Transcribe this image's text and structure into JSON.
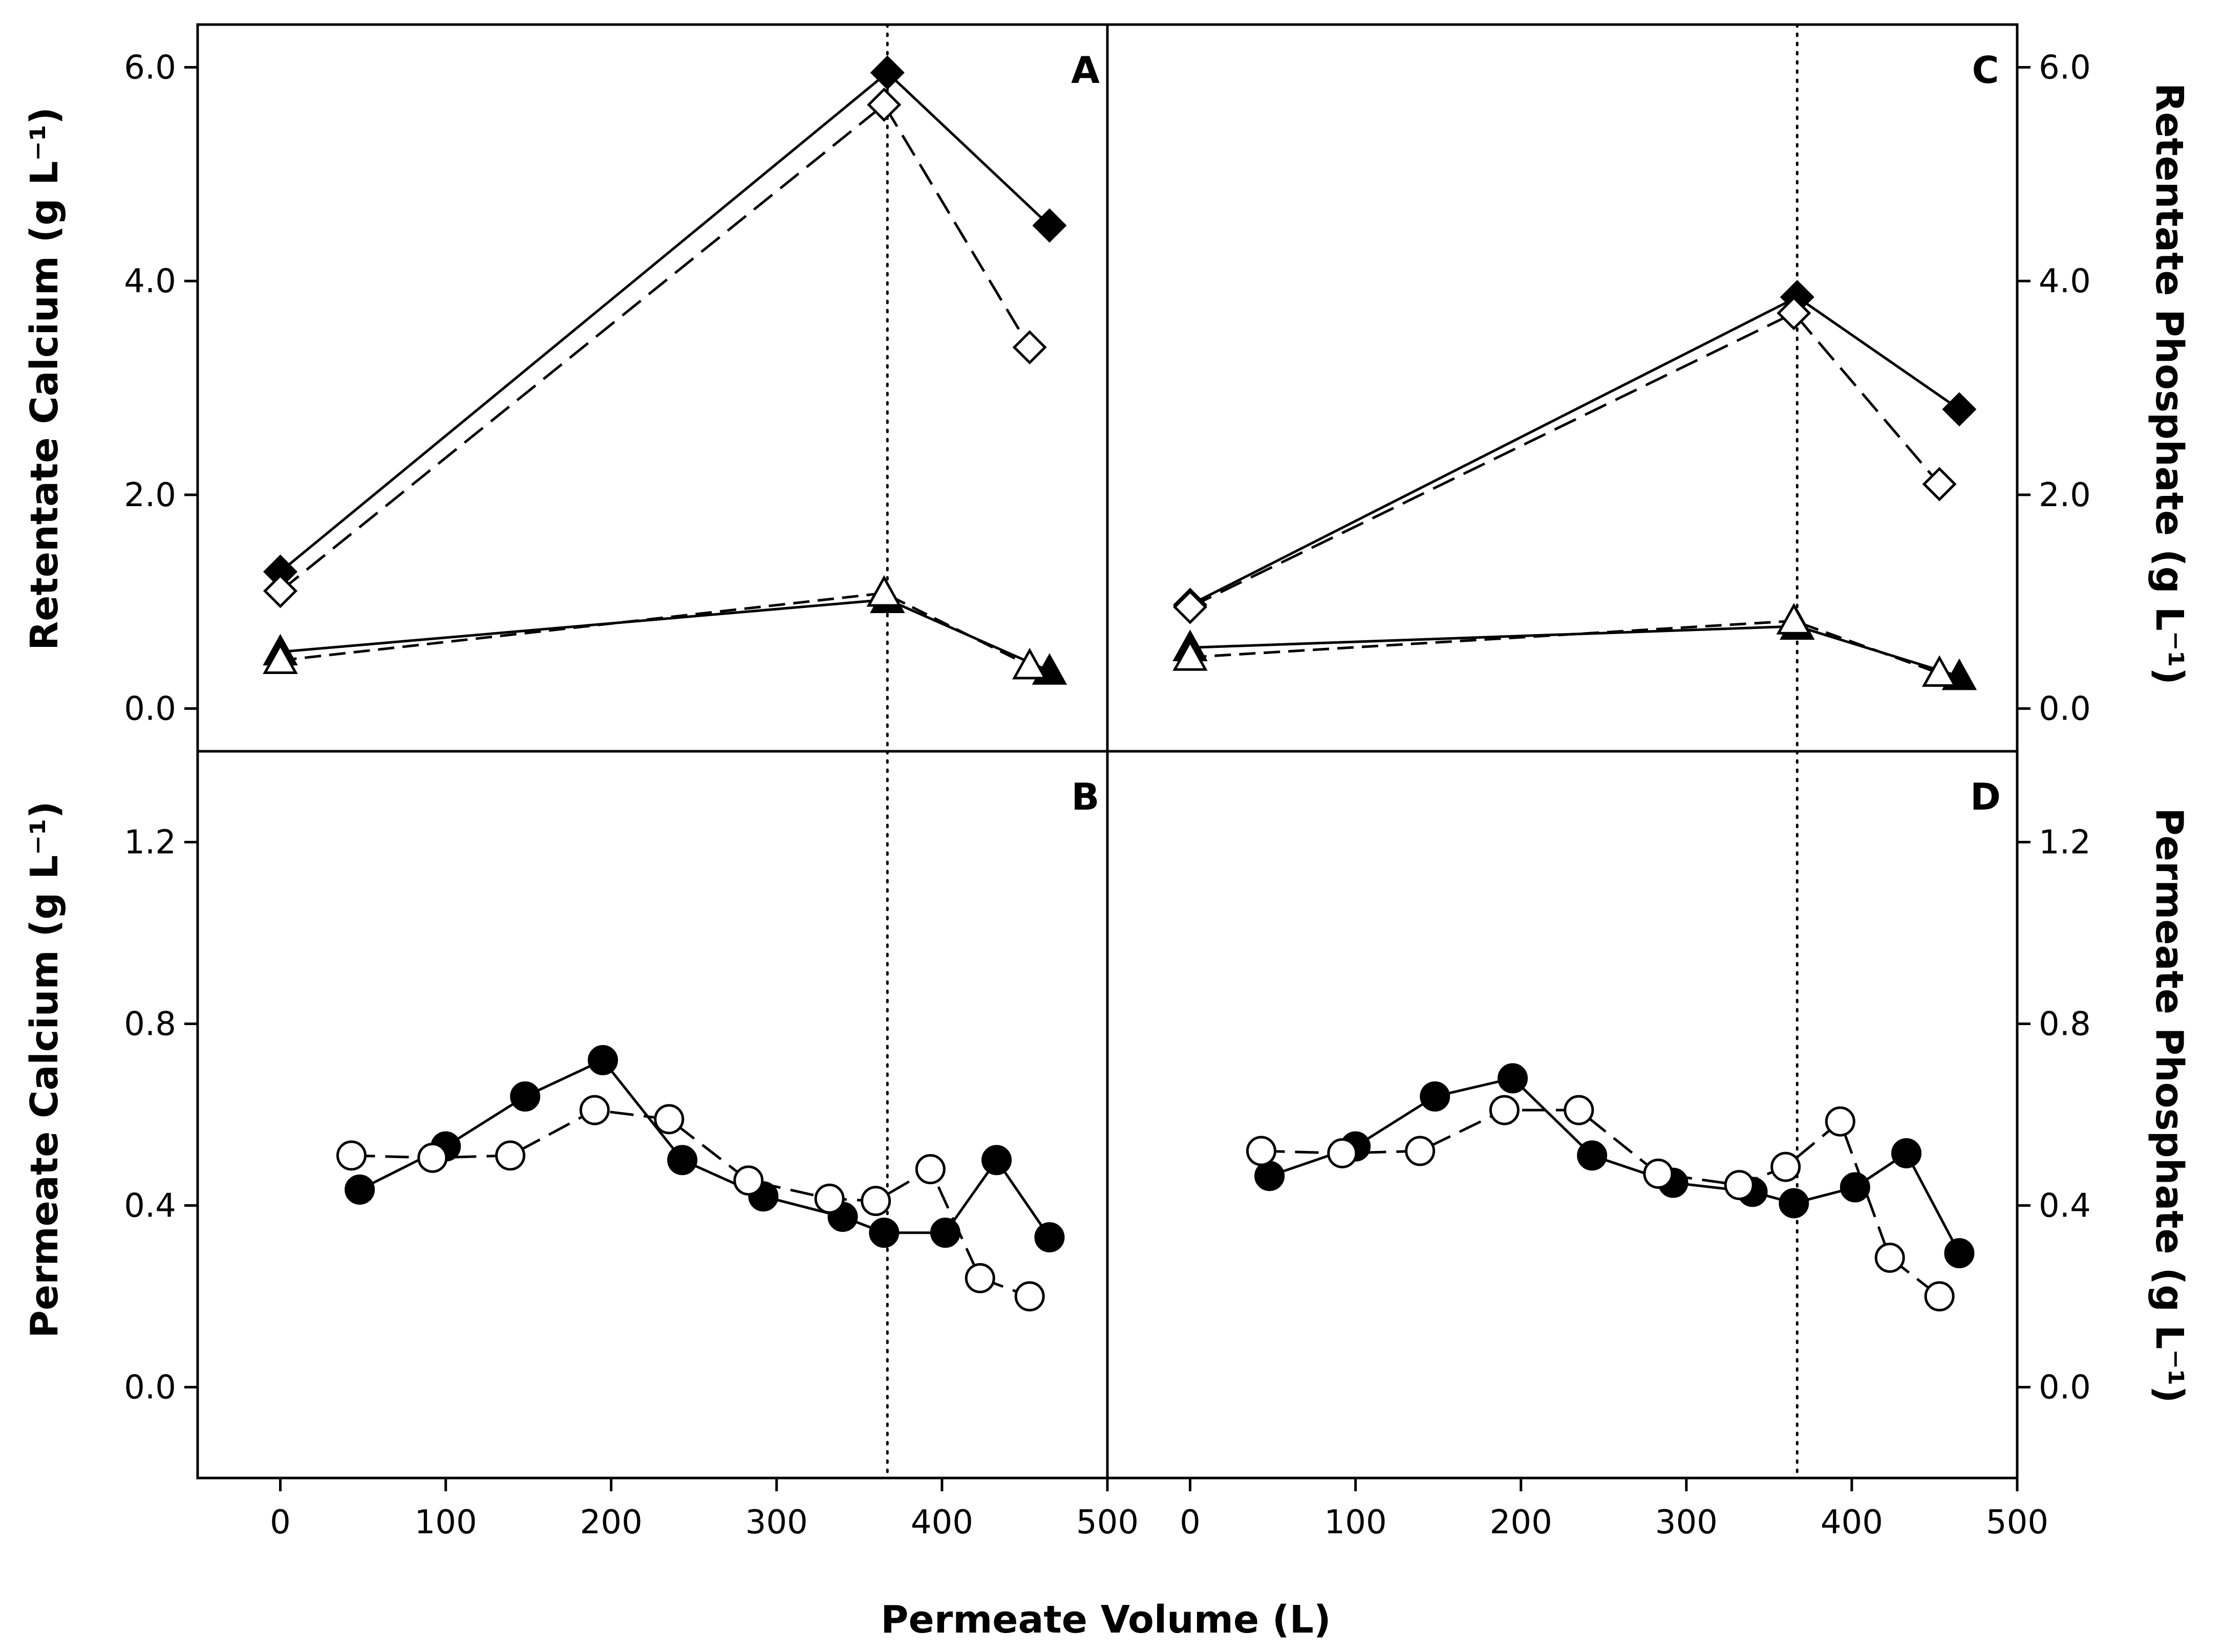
{
  "chart_data": [
    {
      "panel": "A",
      "type": "line",
      "ylabel": "Retentate Calcium (g L⁻¹)",
      "xlabel": "Permeate Volume (L)",
      "xlim": [
        -50,
        500
      ],
      "ylim": [
        -0.4,
        6.4
      ],
      "xticks": [
        0,
        100,
        200,
        300,
        400,
        500
      ],
      "xtick_labels": [
        "0",
        "100",
        "200",
        "300",
        "400",
        "500"
      ],
      "yticks": [
        0.0,
        2.0,
        4.0,
        6.0
      ],
      "ytick_labels": [
        "0.0",
        "2.0",
        "4.0",
        "6.0"
      ],
      "vline_x": 367,
      "series": [
        {
          "name": "filled-diamond",
          "marker": "diamond",
          "filled": true,
          "dash": "solid",
          "x": [
            0,
            367,
            465
          ],
          "y": [
            1.28,
            5.95,
            4.52
          ]
        },
        {
          "name": "open-diamond",
          "marker": "diamond",
          "filled": false,
          "dash": "long",
          "x": [
            0,
            365,
            453
          ],
          "y": [
            1.1,
            5.65,
            3.38
          ]
        },
        {
          "name": "filled-triangle",
          "marker": "triangle",
          "filled": true,
          "dash": "solid",
          "x": [
            0,
            367,
            465
          ],
          "y": [
            0.53,
            1.02,
            0.35
          ]
        },
        {
          "name": "open-triangle",
          "marker": "triangle",
          "filled": false,
          "dash": "medium",
          "x": [
            0,
            365,
            453
          ],
          "y": [
            0.45,
            1.08,
            0.4
          ]
        }
      ]
    },
    {
      "panel": "B",
      "type": "line",
      "ylabel": "Permeate Calcium (g L⁻¹)",
      "xlabel": "Permeate Volume (L)",
      "xlim": [
        -50,
        500
      ],
      "ylim": [
        -0.2,
        1.4
      ],
      "xticks": [
        0,
        100,
        200,
        300,
        400,
        500
      ],
      "xtick_labels": [
        "0",
        "100",
        "200",
        "300",
        "400",
        "500"
      ],
      "yticks": [
        0.0,
        0.4,
        0.8,
        1.2
      ],
      "ytick_labels": [
        "0.0",
        "0.4",
        "0.8",
        "1.2"
      ],
      "vline_x": 367,
      "series": [
        {
          "name": "filled-circle",
          "marker": "circle",
          "filled": true,
          "dash": "solid",
          "x": [
            48,
            100,
            148,
            195,
            243,
            292,
            340,
            365,
            402,
            433,
            465
          ],
          "y": [
            0.435,
            0.53,
            0.64,
            0.72,
            0.5,
            0.42,
            0.375,
            0.34,
            0.34,
            0.5,
            0.33
          ]
        },
        {
          "name": "open-circle",
          "marker": "circle",
          "filled": false,
          "dash": "long",
          "x": [
            43,
            92,
            139,
            190,
            235,
            283,
            332,
            360,
            393,
            423,
            453
          ],
          "y": [
            0.51,
            0.505,
            0.51,
            0.61,
            0.59,
            0.455,
            0.415,
            0.41,
            0.48,
            0.24,
            0.2
          ]
        }
      ]
    },
    {
      "panel": "C",
      "type": "line",
      "ylabel": "Retentate Phosphate (g L⁻¹)",
      "xlabel": "Permeate Volume (L)",
      "xlim": [
        -50,
        500
      ],
      "ylim": [
        -0.4,
        6.4
      ],
      "xticks": [
        0,
        100,
        200,
        300,
        400,
        500
      ],
      "xtick_labels": [
        "0",
        "100",
        "200",
        "300",
        "400",
        "500"
      ],
      "yticks": [
        0.0,
        2.0,
        4.0,
        6.0
      ],
      "ytick_labels": [
        "0.0",
        "2.0",
        "4.0",
        "6.0"
      ],
      "vline_x": 367,
      "series": [
        {
          "name": "filled-diamond",
          "marker": "diamond",
          "filled": true,
          "dash": "solid",
          "x": [
            0,
            367,
            465
          ],
          "y": [
            0.97,
            3.85,
            2.8
          ]
        },
        {
          "name": "open-diamond",
          "marker": "diamond",
          "filled": false,
          "dash": "long",
          "x": [
            0,
            365,
            453
          ],
          "y": [
            0.95,
            3.7,
            2.1
          ]
        },
        {
          "name": "filled-triangle",
          "marker": "triangle",
          "filled": true,
          "dash": "solid",
          "x": [
            0,
            367,
            465
          ],
          "y": [
            0.57,
            0.77,
            0.3
          ]
        },
        {
          "name": "open-triangle",
          "marker": "triangle",
          "filled": false,
          "dash": "medium",
          "x": [
            0,
            365,
            453
          ],
          "y": [
            0.48,
            0.82,
            0.33
          ]
        }
      ]
    },
    {
      "panel": "D",
      "type": "line",
      "ylabel": "Permeate Phosphate (g L⁻¹)",
      "xlabel": "Permeate Volume (L)",
      "xlim": [
        -50,
        500
      ],
      "ylim": [
        -0.2,
        1.4
      ],
      "xticks": [
        0,
        100,
        200,
        300,
        400,
        500
      ],
      "xtick_labels": [
        "0",
        "100",
        "200",
        "300",
        "400",
        "500"
      ],
      "yticks": [
        0.0,
        0.4,
        0.8,
        1.2
      ],
      "ytick_labels": [
        "0.0",
        "0.4",
        "0.8",
        "1.2"
      ],
      "vline_x": 367,
      "series": [
        {
          "name": "filled-circle",
          "marker": "circle",
          "filled": true,
          "dash": "solid",
          "x": [
            48,
            100,
            148,
            195,
            243,
            292,
            340,
            365,
            402,
            433,
            465
          ],
          "y": [
            0.465,
            0.53,
            0.64,
            0.68,
            0.51,
            0.45,
            0.43,
            0.405,
            0.44,
            0.515,
            0.295
          ]
        },
        {
          "name": "open-circle",
          "marker": "circle",
          "filled": false,
          "dash": "long",
          "x": [
            43,
            92,
            139,
            190,
            235,
            283,
            332,
            360,
            393,
            423,
            453
          ],
          "y": [
            0.52,
            0.515,
            0.52,
            0.61,
            0.61,
            0.47,
            0.445,
            0.485,
            0.585,
            0.285,
            0.2
          ]
        }
      ]
    }
  ]
}
